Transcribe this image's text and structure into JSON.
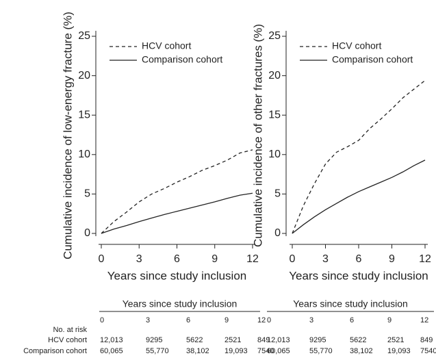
{
  "chart_data": [
    {
      "type": "line",
      "ylabel": "Cumulative incidence of low-energy fracture (%)",
      "xlabel": "Years since study inclusion",
      "x": [
        0,
        1,
        2,
        3,
        4,
        5,
        6,
        7,
        8,
        9,
        10,
        11,
        12
      ],
      "series": [
        {
          "name": "HCV cohort",
          "color": "#222222",
          "dash": true,
          "values": [
            0,
            1.5,
            2.7,
            4.0,
            5.0,
            5.7,
            6.5,
            7.2,
            8.0,
            8.6,
            9.3,
            10.2,
            10.6
          ]
        },
        {
          "name": "Comparison cohort",
          "color": "#222222",
          "dash": false,
          "values": [
            0,
            0.55,
            1.0,
            1.5,
            1.95,
            2.4,
            2.8,
            3.2,
            3.6,
            4.0,
            4.45,
            4.85,
            5.1
          ]
        }
      ],
      "xlim": [
        0,
        12
      ],
      "xticks": [
        0,
        3,
        6,
        9,
        12
      ],
      "ylim": [
        0,
        25
      ],
      "yticks": [
        0,
        5,
        10,
        15,
        20,
        25
      ],
      "legend": "top-left"
    },
    {
      "type": "line",
      "ylabel": "Cumulative incidence of other fractures (%)",
      "xlabel": "Years since study inclusion",
      "x": [
        0,
        1,
        2,
        3,
        4,
        5,
        6,
        7,
        8,
        9,
        10,
        11,
        12
      ],
      "series": [
        {
          "name": "HCV cohort",
          "color": "#222222",
          "dash": true,
          "values": [
            0,
            3.5,
            6.3,
            8.8,
            10.3,
            11.0,
            11.8,
            13.3,
            14.5,
            15.8,
            17.2,
            18.3,
            19.4
          ]
        },
        {
          "name": "Comparison cohort",
          "color": "#222222",
          "dash": false,
          "values": [
            0,
            1.1,
            2.1,
            3.0,
            3.8,
            4.6,
            5.3,
            5.9,
            6.5,
            7.1,
            7.8,
            8.6,
            9.3
          ]
        }
      ],
      "xlim": [
        0,
        12
      ],
      "xticks": [
        0,
        3,
        6,
        9,
        12
      ],
      "ylim": [
        0,
        25
      ],
      "yticks": [
        0,
        5,
        10,
        15,
        20,
        25
      ],
      "legend": "top-left"
    }
  ],
  "risk_table": {
    "row_labels": [
      "No. at risk",
      "HCV cohort",
      "Comparison cohort"
    ],
    "panels": [
      {
        "header": "Years since study inclusion",
        "columns": [
          "0",
          "3",
          "6",
          "9",
          "12"
        ],
        "rows": [
          [
            "12,013",
            "9295",
            "5622",
            "2521",
            "849"
          ],
          [
            "60,065",
            "55,770",
            "38,102",
            "19,093",
            "7540"
          ]
        ]
      },
      {
        "header": "Years since study inclusion",
        "columns": [
          "0",
          "3",
          "6",
          "9",
          "12"
        ],
        "rows": [
          [
            "12,013",
            "9295",
            "5622",
            "2521",
            "849"
          ],
          [
            "60,065",
            "55,770",
            "38,102",
            "19,093",
            "7540"
          ]
        ]
      }
    ]
  }
}
